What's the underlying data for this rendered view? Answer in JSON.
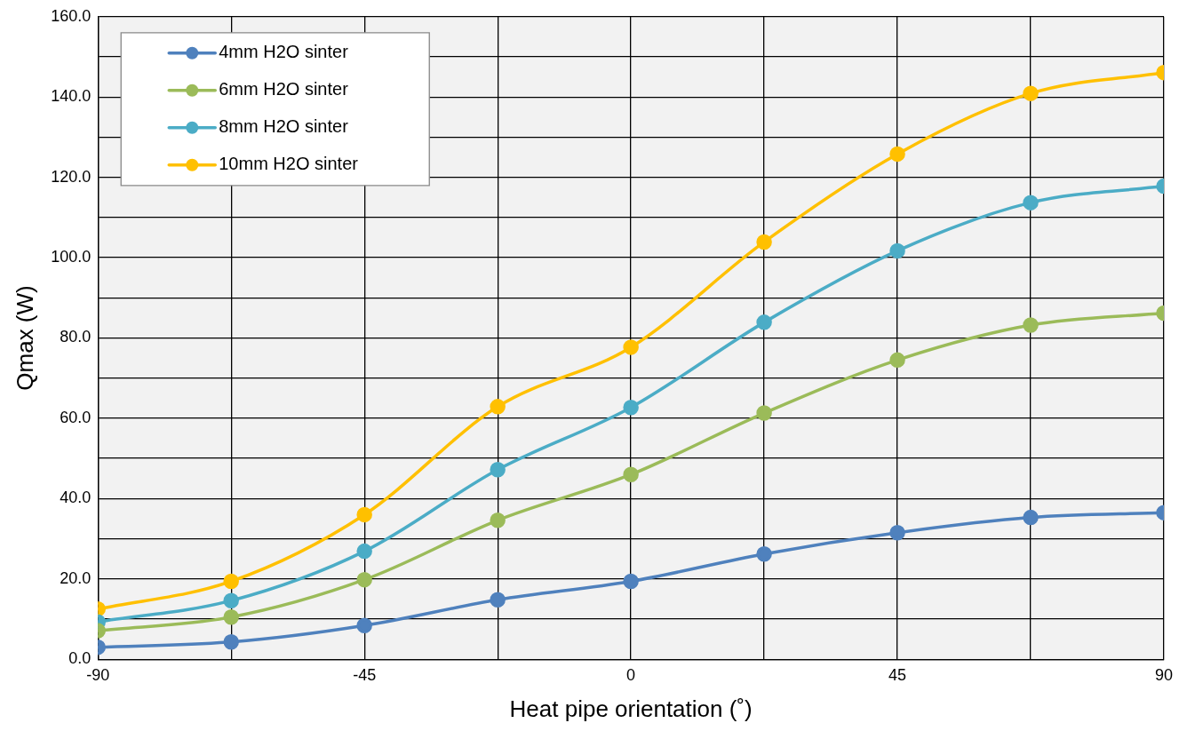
{
  "chart_data": {
    "type": "line",
    "xlabel": "Heat pipe orientation (˚)",
    "ylabel": "Qmax (W)",
    "x": [
      -90,
      -67.5,
      -45,
      -22.5,
      0,
      22.5,
      45,
      67.5,
      90
    ],
    "series": [
      {
        "name": "4mm H2O sinter",
        "color": "#4f81bd",
        "values": [
          3.0,
          4.3,
          8.4,
          14.8,
          19.4,
          26.2,
          31.5,
          35.3,
          36.5
        ]
      },
      {
        "name": "6mm H2O sinter",
        "color": "#9bbb59",
        "values": [
          7.1,
          10.5,
          19.8,
          34.6,
          46.0,
          61.3,
          74.5,
          83.2,
          86.2
        ]
      },
      {
        "name": "8mm H2O sinter",
        "color": "#4bacc6",
        "values": [
          9.3,
          14.6,
          26.9,
          47.2,
          62.7,
          83.9,
          101.7,
          113.7,
          117.8
        ]
      },
      {
        "name": "10mm H2O sinter",
        "color": "#ffc000",
        "values": [
          12.5,
          19.4,
          36.0,
          62.9,
          77.7,
          103.9,
          125.8,
          140.9,
          146.1
        ]
      }
    ],
    "xlim": [
      -90,
      90
    ],
    "xticks": [
      -90,
      {
        "value": -67.5,
        "label": null
      },
      -45,
      {
        "value": -22.5,
        "label": null
      },
      0,
      {
        "value": 22.5,
        "label": null
      },
      45,
      {
        "value": 67.5,
        "label": null
      },
      90
    ],
    "ylim": [
      0,
      160
    ],
    "yticks": [
      {
        "value": 0,
        "label": "0.0"
      },
      {
        "value": 10,
        "label": null
      },
      {
        "value": 20,
        "label": "20.0"
      },
      {
        "value": 30,
        "label": null
      },
      {
        "value": 40,
        "label": "40.0"
      },
      {
        "value": 50,
        "label": null
      },
      {
        "value": 60,
        "label": "60.0"
      },
      {
        "value": 70,
        "label": null
      },
      {
        "value": 80,
        "label": "80.0"
      },
      {
        "value": 90,
        "label": null
      },
      {
        "value": 100,
        "label": "100.0"
      },
      {
        "value": 110,
        "label": null
      },
      {
        "value": 120,
        "label": "120.0"
      },
      {
        "value": 130,
        "label": null
      },
      {
        "value": 140,
        "label": "140.0"
      },
      {
        "value": 150,
        "label": null
      },
      {
        "value": 160,
        "label": "160.0"
      }
    ],
    "grid": true,
    "legend": "top left",
    "marker": "circle",
    "line_style": "solid"
  }
}
